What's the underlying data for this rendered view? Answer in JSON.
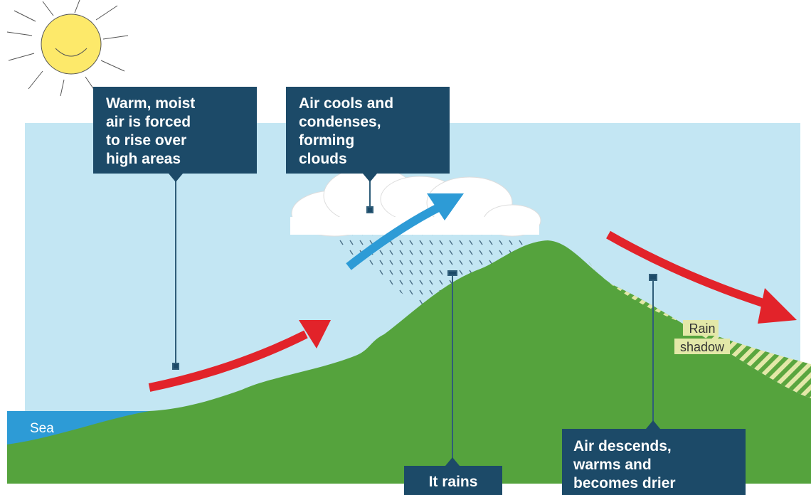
{
  "callouts": [
    {
      "lines": [
        "Warm, moist",
        "air is forced",
        "to rise over",
        "high areas"
      ]
    },
    {
      "lines": [
        "Air cools and",
        "condenses,",
        "forming",
        "clouds"
      ]
    },
    {
      "lines": [
        "It rains"
      ]
    },
    {
      "lines": [
        "Air descends,",
        "warms and",
        "becomes drier"
      ]
    }
  ],
  "labels": {
    "sea": "Sea",
    "rain_shadow": [
      "Rain",
      "shadow"
    ]
  }
}
